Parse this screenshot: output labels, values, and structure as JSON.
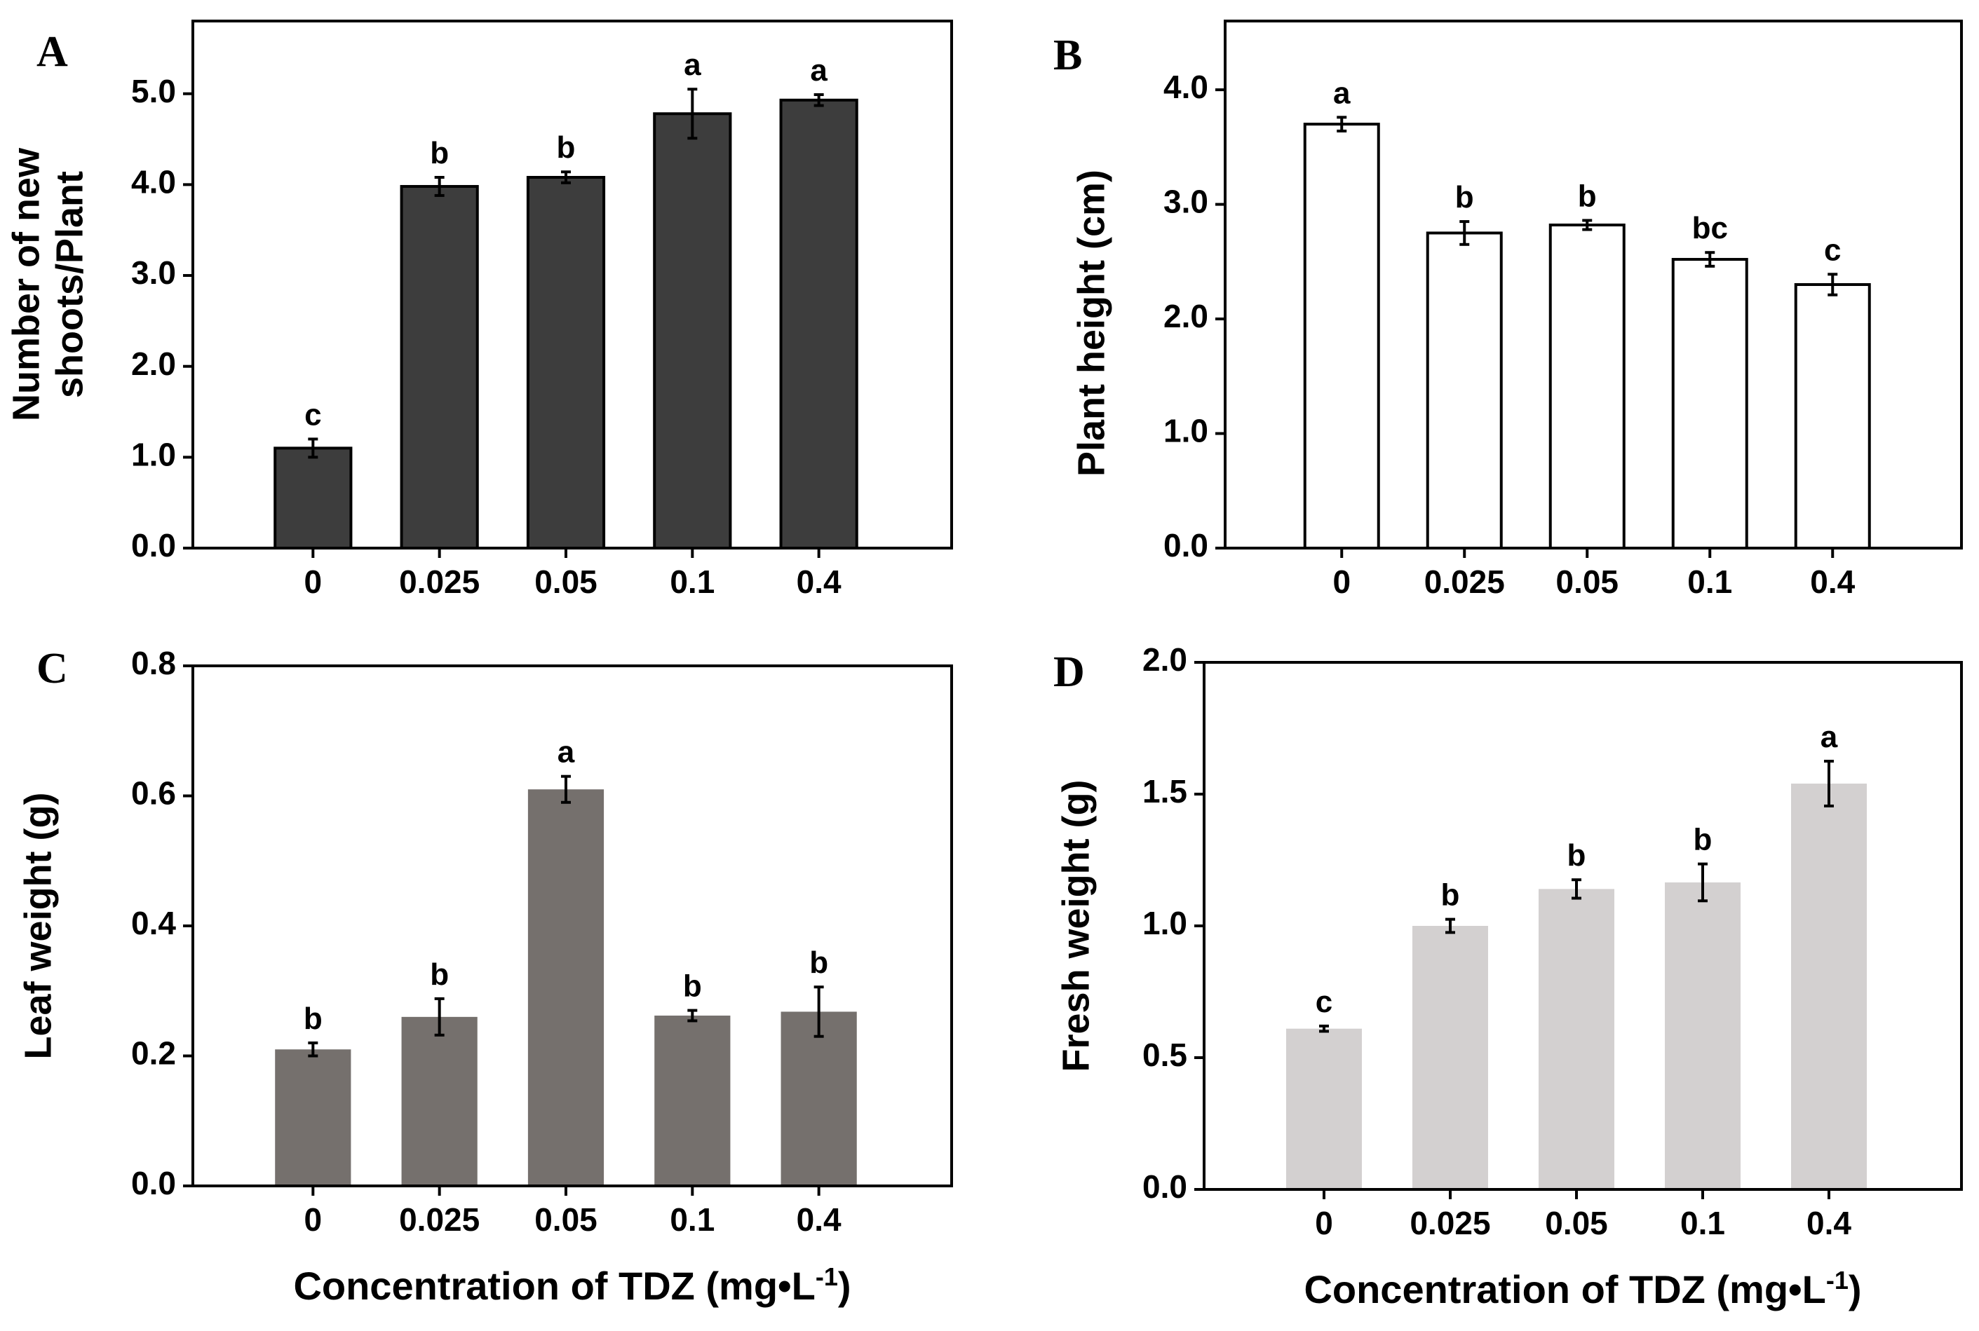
{
  "figure": {
    "x_axis_title_prefix": "Concentration of TDZ (mg•L",
    "x_axis_title_superscript": "-1",
    "x_axis_title_suffix": ")"
  },
  "chart_data": [
    {
      "panel": "A",
      "type": "bar",
      "categories": [
        "0",
        "0.025",
        "0.05",
        "0.1",
        "0.4"
      ],
      "values": [
        1.1,
        3.98,
        4.08,
        4.78,
        4.93
      ],
      "errors": [
        0.1,
        0.1,
        0.06,
        0.27,
        0.06
      ],
      "significance": [
        "c",
        "b",
        "b",
        "a",
        "a"
      ],
      "ylabel_lines": [
        "Number of new",
        "shoots/Plant"
      ],
      "ylim": [
        0,
        5.8
      ],
      "yticks": [
        0.0,
        1.0,
        2.0,
        3.0,
        4.0,
        5.0
      ],
      "ytick_labels": [
        "0.0",
        "1.0",
        "2.0",
        "3.0",
        "4.0",
        "5.0"
      ],
      "bar_color": "#3d3d3d",
      "bar_stroke": "#000000",
      "show_xtitle": false
    },
    {
      "panel": "B",
      "type": "bar",
      "categories": [
        "0",
        "0.025",
        "0.05",
        "0.1",
        "0.4"
      ],
      "values": [
        3.7,
        2.75,
        2.82,
        2.52,
        2.3
      ],
      "errors": [
        0.06,
        0.1,
        0.04,
        0.06,
        0.09
      ],
      "significance": [
        "a",
        "b",
        "b",
        "bc",
        "c"
      ],
      "ylabel_lines": [
        "Plant height (cm)"
      ],
      "ylim": [
        0,
        4.6
      ],
      "yticks": [
        0.0,
        1.0,
        2.0,
        3.0,
        4.0
      ],
      "ytick_labels": [
        "0.0",
        "1.0",
        "2.0",
        "3.0",
        "4.0"
      ],
      "bar_color": "#ffffff",
      "bar_stroke": "#000000",
      "show_xtitle": false
    },
    {
      "panel": "C",
      "type": "bar",
      "categories": [
        "0",
        "0.025",
        "0.05",
        "0.1",
        "0.4"
      ],
      "values": [
        0.21,
        0.26,
        0.61,
        0.262,
        0.268
      ],
      "errors": [
        0.01,
        0.028,
        0.02,
        0.008,
        0.038
      ],
      "significance": [
        "b",
        "b",
        "a",
        "b",
        "b"
      ],
      "ylabel_lines": [
        "Leaf weight (g)"
      ],
      "ylim": [
        0,
        0.8
      ],
      "yticks": [
        0.0,
        0.2,
        0.4,
        0.6,
        0.8
      ],
      "ytick_labels": [
        "0.0",
        "0.2",
        "0.4",
        "0.6",
        "0.8"
      ],
      "bar_color": "#75706d",
      "bar_stroke": "none",
      "show_xtitle": true
    },
    {
      "panel": "D",
      "type": "bar",
      "categories": [
        "0",
        "0.025",
        "0.05",
        "0.1",
        "0.4"
      ],
      "values": [
        0.61,
        1.0,
        1.14,
        1.165,
        1.54
      ],
      "errors": [
        0.01,
        0.025,
        0.035,
        0.07,
        0.085
      ],
      "significance": [
        "c",
        "b",
        "b",
        "b",
        "a"
      ],
      "ylabel_lines": [
        "Fresh weight (g)"
      ],
      "ylim": [
        0,
        2.0
      ],
      "yticks": [
        0.0,
        0.5,
        1.0,
        1.5,
        2.0
      ],
      "ytick_labels": [
        "0.0",
        "0.5",
        "1.0",
        "1.5",
        "2.0"
      ],
      "bar_color": "#d3d0d0",
      "bar_stroke": "none",
      "show_xtitle": true
    }
  ]
}
